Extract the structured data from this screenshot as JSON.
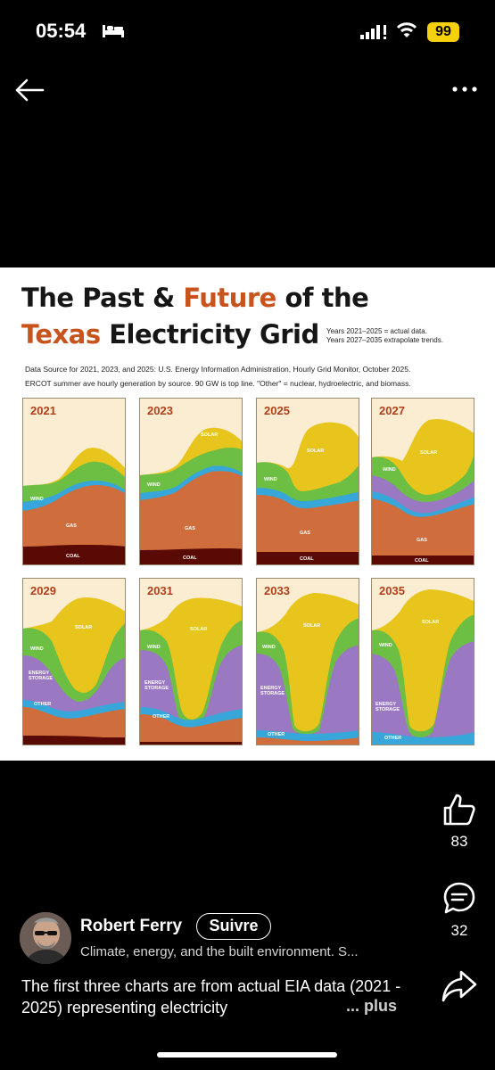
{
  "status_bar": {
    "time": "05:54",
    "battery": "99"
  },
  "post_image": {
    "title_line1_part1": "The Past & ",
    "title_line1_part2": "Future",
    "title_line1_part3": " of the",
    "title_line2_part1": "Texas",
    "title_line2_part2": " Electricity Grid",
    "years_note": "Years 2021–2025 = actual data.\nYears 2027–2035 extrapolate trends.",
    "source_line1": "Data Source for 2021, 2023, and 2025: U.S. Energy Information Administration, Hourly Grid Monitor, October 2025.",
    "source_line2": "ERCOT summer ave hourly generation by source. 90 GW is top line. \"Other\" = nuclear, hydroelectric, and biomass.",
    "colors": {
      "coal": "#5a0a05",
      "gas": "#cf6d3c",
      "other": "#36a7d8",
      "storage": "#9a78c2",
      "wind": "#6cbf43",
      "solar": "#e7c51c",
      "background": "#fbedd2",
      "year": "#b0401a"
    },
    "panels": [
      {
        "year": "2021",
        "labels": {
          "wind": "WIND",
          "gas": "GAS",
          "coal": "COAL"
        }
      },
      {
        "year": "2023",
        "labels": {
          "solar": "SOLAR",
          "wind": "WIND",
          "gas": "GAS",
          "coal": "COAL"
        }
      },
      {
        "year": "2025",
        "labels": {
          "solar": "SOLAR",
          "wind": "WIND",
          "gas": "GAS",
          "coal": "COAL"
        }
      },
      {
        "year": "2027",
        "labels": {
          "solar": "SOLAR",
          "wind": "WIND",
          "gas": "GAS",
          "coal": "COAL"
        }
      },
      {
        "year": "2029",
        "labels": {
          "solar": "SOLAR",
          "wind": "WIND",
          "storage": "ENERGY\nSTORAGE",
          "other": "OTHER"
        }
      },
      {
        "year": "2031",
        "labels": {
          "solar": "SOLAR",
          "wind": "WIND",
          "storage": "ENERGY\nSTORAGE",
          "other": "OTHER"
        }
      },
      {
        "year": "2033",
        "labels": {
          "solar": "SOLAR",
          "wind": "WIND",
          "storage": "ENERGY\nSTORAGE",
          "other": "OTHER"
        }
      },
      {
        "year": "2035",
        "labels": {
          "solar": "SOLAR",
          "wind": "WIND",
          "storage": "ENERGY\nSTORAGE",
          "other": "OTHER"
        }
      }
    ]
  },
  "actions": {
    "likes": "83",
    "comments": "32"
  },
  "author": {
    "name": "Robert Ferry",
    "follow_label": "Suivre",
    "headline": "Climate, energy, and the built environment. S..."
  },
  "caption": {
    "text": "The first three charts are from actual EIA data (2021 - 2025) representing electricity",
    "more_label": "... plus"
  }
}
